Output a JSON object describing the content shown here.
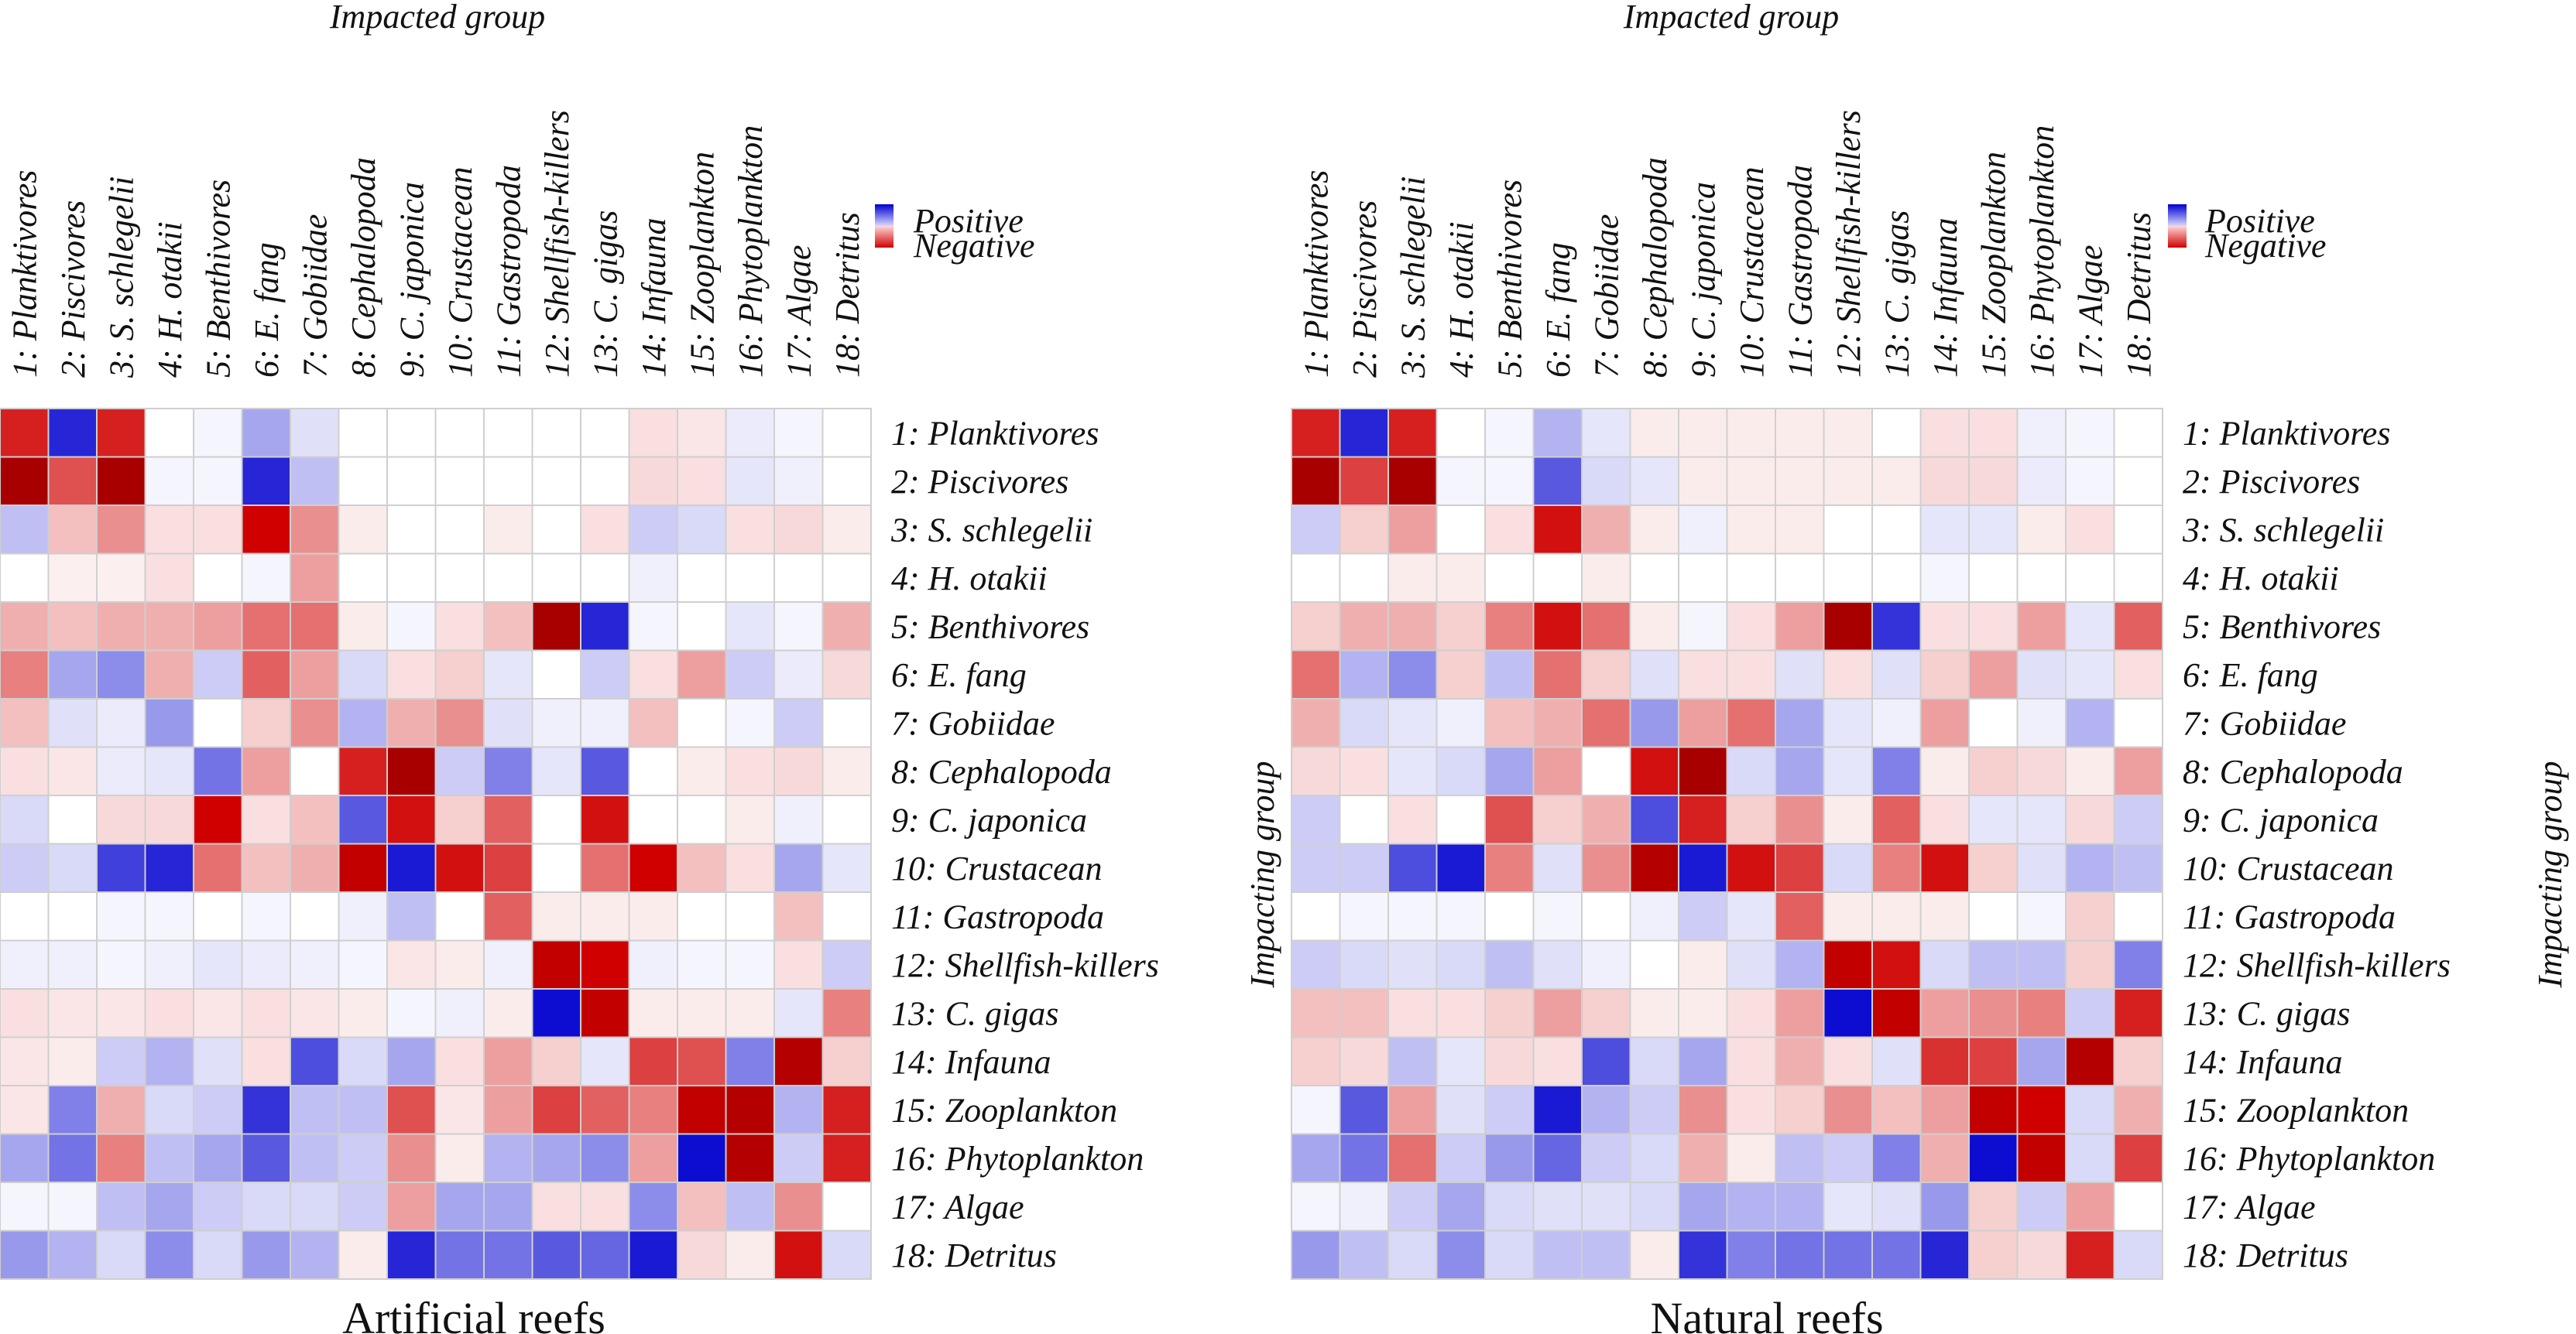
{
  "figure": {
    "colors": {
      "positive": "#0000d0",
      "negative": "#d00000",
      "strong_negative": "#9a0000",
      "neutral": "#ffffff",
      "grid": "#cfcfcf"
    },
    "legend": {
      "positive": "Positive",
      "negative": "Negative"
    }
  },
  "chart_data": [
    {
      "type": "heatmap",
      "title": "Artificial reefs",
      "xlabel": "Impacted group",
      "ylabel": "Impacting group",
      "value_range": [
        -1,
        1
      ],
      "groups": [
        "1: Planktivores",
        "2: Piscivores",
        "3: S. schlegelii",
        "4: H. otakii",
        "5: Benthivores",
        "6: E. fang",
        "7: Gobiidae",
        "8: Cephalopoda",
        "9: C. japonica",
        "10: Crustacean",
        "11: Gastropoda",
        "12: Shellfish-killers",
        "13: C. gigas",
        "14: Infauna",
        "15: Zooplankton",
        "16: Phytoplankton",
        "17: Algae",
        "18: Detritus"
      ],
      "values": [
        [
          -0.7,
          0.85,
          -0.7,
          0,
          0.04,
          0.35,
          0.12,
          0,
          0,
          0,
          0,
          0,
          0,
          -0.1,
          -0.08,
          0.08,
          0.04,
          0
        ],
        [
          -0.95,
          -0.55,
          -0.95,
          0.04,
          0.04,
          0.85,
          0.25,
          0,
          0,
          0,
          0,
          0,
          0,
          -0.12,
          -0.1,
          0.1,
          0.06,
          0
        ],
        [
          0.25,
          -0.2,
          -0.35,
          -0.1,
          -0.1,
          -0.8,
          -0.35,
          -0.06,
          0,
          0,
          -0.06,
          0,
          -0.1,
          0.2,
          0.15,
          -0.1,
          -0.12,
          -0.06
        ],
        [
          0,
          -0.05,
          -0.05,
          -0.1,
          0,
          0.04,
          -0.3,
          0,
          0,
          0,
          0,
          0,
          0,
          0.06,
          0,
          0,
          0,
          0
        ],
        [
          -0.25,
          -0.2,
          -0.25,
          -0.25,
          -0.3,
          -0.45,
          -0.45,
          -0.06,
          0.04,
          -0.1,
          -0.2,
          -0.95,
          0.85,
          0.04,
          0,
          0.1,
          0.04,
          -0.25
        ],
        [
          -0.4,
          0.35,
          0.45,
          -0.25,
          0.2,
          -0.5,
          -0.3,
          0.15,
          -0.1,
          -0.15,
          0.1,
          0,
          0.2,
          -0.1,
          -0.3,
          0.2,
          0.08,
          -0.12
        ],
        [
          -0.2,
          0.12,
          0.08,
          0.4,
          0,
          -0.15,
          -0.35,
          0.3,
          -0.25,
          -0.35,
          0.12,
          0.06,
          0.06,
          -0.2,
          0,
          0.04,
          0.2,
          0
        ],
        [
          -0.1,
          -0.08,
          0.08,
          0.1,
          0.55,
          -0.3,
          0,
          -0.7,
          -0.95,
          0.2,
          0.5,
          0.1,
          0.65,
          0,
          -0.06,
          -0.1,
          -0.12,
          -0.06
        ],
        [
          0.15,
          0,
          -0.12,
          -0.12,
          -0.8,
          -0.1,
          -0.2,
          0.65,
          -0.75,
          -0.15,
          -0.5,
          0,
          -0.75,
          0,
          0,
          -0.06,
          0.06,
          0
        ],
        [
          0.2,
          0.15,
          0.75,
          0.85,
          -0.45,
          -0.2,
          -0.25,
          -0.85,
          0.9,
          -0.75,
          -0.6,
          0,
          -0.45,
          -0.8,
          -0.2,
          -0.1,
          0.35,
          0.1
        ],
        [
          0,
          0,
          0.04,
          0.04,
          0,
          0.04,
          0,
          0.06,
          0.25,
          0,
          -0.5,
          -0.06,
          -0.06,
          -0.06,
          0,
          0,
          -0.2,
          0
        ],
        [
          0.06,
          0.06,
          0.04,
          0.06,
          0.1,
          0.08,
          0.06,
          0.04,
          -0.08,
          -0.06,
          0.06,
          -0.85,
          -0.8,
          0.06,
          0.04,
          0.04,
          -0.1,
          0.2
        ],
        [
          -0.1,
          -0.08,
          -0.08,
          -0.1,
          -0.08,
          -0.1,
          -0.08,
          -0.06,
          0.04,
          0.06,
          -0.06,
          0.95,
          -0.85,
          -0.06,
          -0.06,
          -0.06,
          0.1,
          -0.4
        ],
        [
          -0.08,
          -0.06,
          0.2,
          0.3,
          0.12,
          -0.1,
          0.7,
          0.15,
          0.35,
          -0.1,
          -0.3,
          -0.15,
          0.1,
          -0.6,
          -0.55,
          0.5,
          -0.9,
          -0.15
        ],
        [
          -0.08,
          0.5,
          -0.25,
          0.15,
          0.2,
          0.8,
          0.25,
          0.25,
          -0.55,
          -0.08,
          -0.3,
          -0.6,
          -0.5,
          -0.4,
          -0.85,
          -0.9,
          0.3,
          -0.7
        ],
        [
          0.35,
          0.55,
          -0.4,
          0.25,
          0.35,
          0.65,
          0.25,
          0.2,
          -0.35,
          -0.06,
          0.3,
          0.35,
          0.45,
          -0.3,
          0.95,
          -0.9,
          0.2,
          -0.7
        ],
        [
          0.04,
          0.04,
          0.25,
          0.35,
          0.2,
          0.15,
          0.15,
          0.2,
          -0.3,
          0.35,
          0.35,
          -0.1,
          -0.1,
          0.45,
          -0.2,
          0.25,
          -0.35,
          0
        ],
        [
          0.4,
          0.3,
          0.15,
          0.45,
          0.15,
          0.4,
          0.3,
          -0.06,
          0.85,
          0.55,
          0.55,
          0.65,
          0.6,
          0.9,
          -0.12,
          -0.06,
          -0.75,
          0.15
        ]
      ]
    },
    {
      "type": "heatmap",
      "title": "Natural reefs",
      "xlabel": "Impacted group",
      "ylabel": "Impacting group",
      "value_range": [
        -1,
        1
      ],
      "groups": [
        "1: Planktivores",
        "2: Piscivores",
        "3: S. schlegelii",
        "4: H. otakii",
        "5: Benthivores",
        "6: E. fang",
        "7: Gobiidae",
        "8: Cephalopoda",
        "9: C. japonica",
        "10: Crustacean",
        "11: Gastropoda",
        "12: Shellfish-killers",
        "13: C. gigas",
        "14: Infauna",
        "15: Zooplankton",
        "16: Phytoplankton",
        "17: Algae",
        "18: Detritus"
      ],
      "values": [
        [
          -0.7,
          0.85,
          -0.7,
          0,
          0.04,
          0.3,
          0.1,
          -0.06,
          -0.06,
          -0.06,
          -0.06,
          -0.06,
          0,
          -0.1,
          -0.1,
          0.06,
          0.04,
          0
        ],
        [
          -0.95,
          -0.6,
          -0.95,
          0.04,
          0.04,
          0.65,
          0.15,
          0.1,
          -0.06,
          -0.06,
          -0.06,
          -0.06,
          -0.06,
          -0.12,
          -0.12,
          0.08,
          0.04,
          0
        ],
        [
          0.2,
          -0.15,
          -0.3,
          0,
          -0.1,
          -0.75,
          -0.25,
          -0.06,
          0.06,
          -0.06,
          -0.06,
          0,
          0,
          0.1,
          0.1,
          -0.06,
          -0.1,
          0
        ],
        [
          0,
          0,
          -0.06,
          -0.06,
          0,
          0,
          -0.06,
          0,
          0,
          0,
          0,
          0,
          0,
          0.04,
          0,
          0,
          0,
          0
        ],
        [
          -0.15,
          -0.25,
          -0.25,
          -0.15,
          -0.4,
          -0.75,
          -0.45,
          -0.06,
          0.04,
          -0.1,
          -0.3,
          -0.95,
          0.8,
          -0.1,
          -0.1,
          -0.3,
          0.1,
          -0.5
        ],
        [
          -0.45,
          0.3,
          0.45,
          -0.15,
          0.25,
          -0.45,
          -0.15,
          0.12,
          -0.1,
          -0.1,
          0.12,
          -0.1,
          0.12,
          -0.15,
          -0.3,
          0.12,
          0.1,
          -0.1
        ],
        [
          -0.25,
          0.15,
          0.1,
          0.06,
          -0.2,
          -0.25,
          -0.45,
          0.4,
          -0.3,
          -0.45,
          0.35,
          0.1,
          0.06,
          -0.3,
          0,
          0.06,
          0.3,
          0
        ],
        [
          -0.12,
          -0.1,
          0.1,
          0.15,
          0.35,
          -0.3,
          0,
          -0.75,
          -0.95,
          0.15,
          0.35,
          0.1,
          0.5,
          -0.06,
          -0.15,
          -0.12,
          -0.06,
          -0.3
        ],
        [
          0.2,
          0,
          -0.1,
          0,
          -0.55,
          -0.15,
          -0.25,
          0.7,
          -0.7,
          -0.15,
          -0.35,
          -0.06,
          -0.5,
          -0.1,
          0.1,
          0.1,
          -0.12,
          0.2
        ],
        [
          0.2,
          0.2,
          0.7,
          0.9,
          -0.4,
          0.12,
          -0.35,
          -0.9,
          0.9,
          -0.75,
          -0.6,
          0.15,
          -0.4,
          -0.75,
          -0.15,
          0.12,
          0.3,
          0.25
        ],
        [
          0,
          0.04,
          0.04,
          0.04,
          0,
          0.04,
          0,
          0.06,
          0.2,
          0.1,
          -0.5,
          -0.06,
          -0.06,
          -0.06,
          0,
          0.04,
          -0.15,
          0
        ],
        [
          0.2,
          0.15,
          0.12,
          0.15,
          0.25,
          0.12,
          0.06,
          0,
          -0.06,
          0.12,
          0.3,
          -0.85,
          -0.75,
          0.15,
          0.25,
          0.25,
          -0.15,
          0.5
        ],
        [
          -0.2,
          -0.2,
          -0.1,
          -0.1,
          -0.15,
          -0.3,
          -0.15,
          -0.06,
          -0.06,
          -0.1,
          -0.3,
          0.95,
          -0.85,
          -0.3,
          -0.35,
          -0.4,
          0.2,
          -0.7
        ],
        [
          -0.15,
          -0.12,
          0.25,
          0.1,
          -0.12,
          -0.1,
          0.7,
          0.15,
          0.35,
          -0.1,
          -0.25,
          -0.1,
          0.12,
          -0.65,
          -0.6,
          0.35,
          -0.9,
          -0.15
        ],
        [
          0.04,
          0.65,
          -0.3,
          0.12,
          0.2,
          0.9,
          0.3,
          0.2,
          -0.35,
          -0.1,
          -0.15,
          -0.35,
          -0.2,
          -0.3,
          -0.85,
          -0.8,
          0.15,
          -0.25
        ],
        [
          0.35,
          0.55,
          -0.45,
          0.2,
          0.4,
          0.6,
          0.2,
          0.15,
          -0.25,
          -0.06,
          0.25,
          0.2,
          0.5,
          -0.25,
          0.95,
          -0.85,
          0.15,
          -0.6
        ],
        [
          0.04,
          0.06,
          0.2,
          0.35,
          0.15,
          0.12,
          0.12,
          0.15,
          0.35,
          0.3,
          0.3,
          0.1,
          0.12,
          0.4,
          -0.15,
          0.2,
          -0.3,
          0
        ],
        [
          0.4,
          0.25,
          0.15,
          0.45,
          0.15,
          0.25,
          0.25,
          -0.06,
          0.8,
          0.5,
          0.55,
          0.55,
          0.55,
          0.85,
          -0.15,
          -0.12,
          -0.7,
          0.15
        ]
      ]
    }
  ]
}
